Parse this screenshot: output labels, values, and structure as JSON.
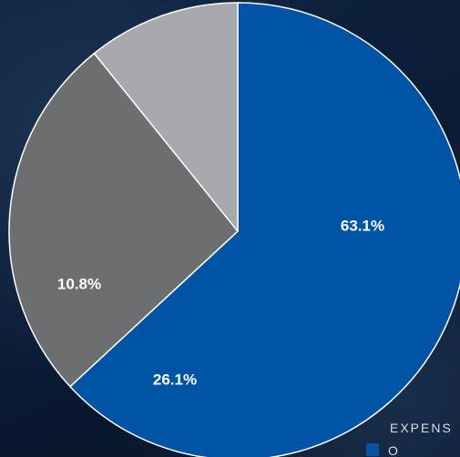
{
  "chart_data": {
    "type": "pie",
    "title": "",
    "slices": [
      {
        "value": 63.1,
        "label": "63.1%",
        "color": "#0054a6"
      },
      {
        "value": 26.1,
        "label": "26.1%",
        "color": "#6d6e70"
      },
      {
        "value": 10.8,
        "label": "10.8%",
        "color": "#a7a9ac"
      }
    ],
    "legend": {
      "title": "EXPENS",
      "items": [
        {
          "label": "O",
          "color": "#0054a6"
        }
      ]
    }
  }
}
